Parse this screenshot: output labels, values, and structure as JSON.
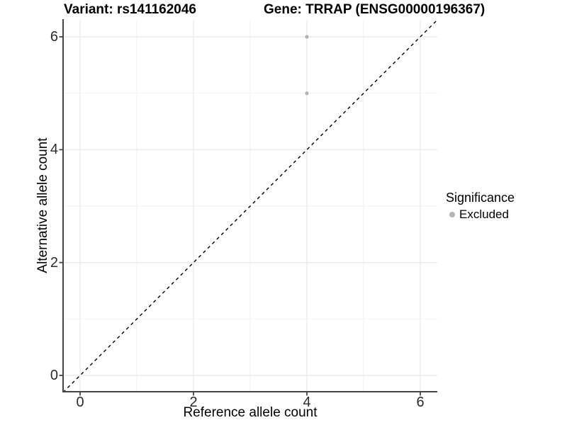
{
  "header": {
    "variant_title": "Variant: rs141162046",
    "gene_title": "Gene: TRRAP (ENSG00000196367)"
  },
  "chart_data": {
    "type": "scatter",
    "title": "Variant: rs141162046 / Gene: TRRAP (ENSG00000196367)",
    "xlabel": "Reference allele count",
    "ylabel": "Alternative allele count",
    "xlim": [
      -0.3,
      6.3
    ],
    "ylim": [
      -0.3,
      6.3
    ],
    "x_ticks": [
      0,
      2,
      4,
      6
    ],
    "y_ticks": [
      0,
      2,
      4,
      6
    ],
    "x_minor_ticks": [
      1,
      3,
      5
    ],
    "y_minor_ticks": [
      1,
      3,
      5
    ],
    "grid": true,
    "series": [
      {
        "name": "Excluded",
        "color": "#b4b4b4",
        "points": [
          [
            4,
            6
          ],
          [
            4,
            5
          ]
        ]
      }
    ],
    "reference_line": {
      "kind": "identity",
      "style": "dashed",
      "color": "#000000"
    },
    "legend": {
      "position": "right",
      "title": "Significance",
      "entries": [
        {
          "label": "Excluded",
          "color": "#b4b4b4"
        }
      ]
    }
  },
  "colors": {
    "background": "#ffffff",
    "grid_major": "#e8e8e8",
    "grid_minor": "#f2f2f2",
    "axis_line": "#454545",
    "tick_text": "#2b2b2b",
    "point": "#b4b4b4",
    "identity_line": "#000000"
  }
}
